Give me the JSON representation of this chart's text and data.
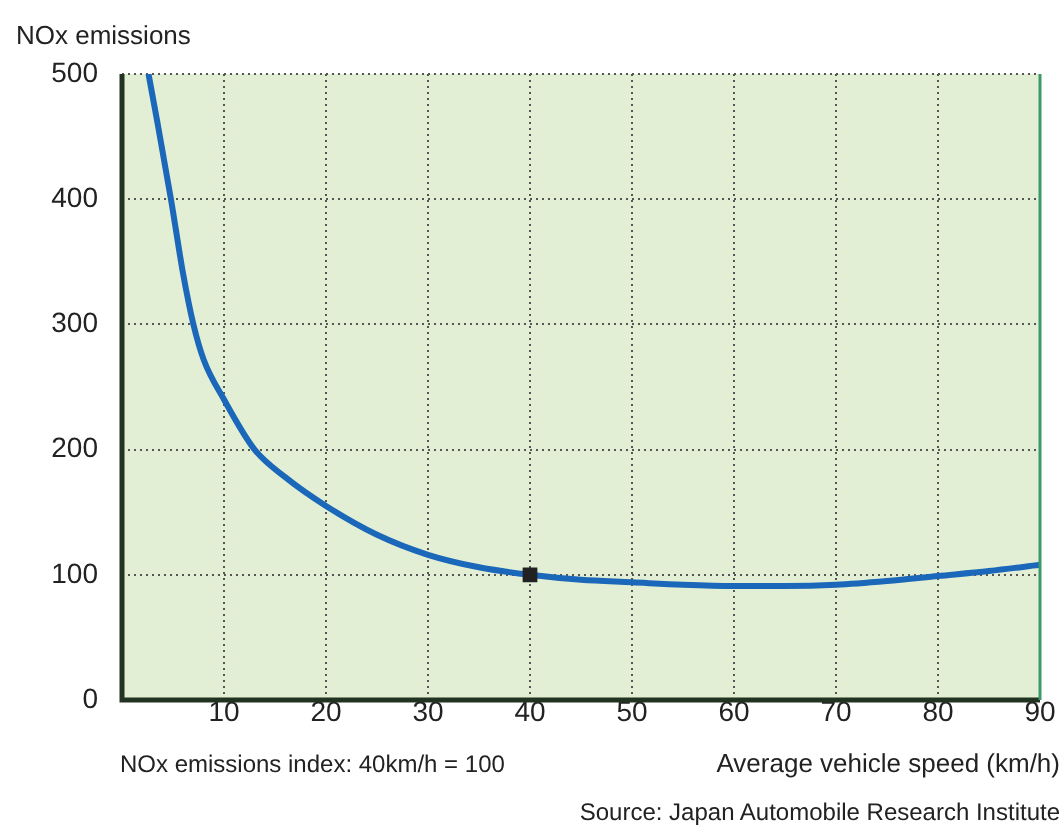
{
  "chart_data": {
    "type": "line",
    "ylabel": "NOx emissions",
    "xlabel": "Average vehicle speed (km/h)",
    "annotations": [
      "NOx emissions index: 40km/h = 100",
      "Source: Japan Automobile Research Institute"
    ],
    "xlim": [
      0,
      90
    ],
    "xticks": [
      10,
      20,
      30,
      40,
      50,
      60,
      70,
      80,
      90
    ],
    "ylim": [
      0,
      500
    ],
    "yticks": [
      0,
      100,
      200,
      300,
      400,
      500
    ],
    "grid": true,
    "legend": false,
    "series": [
      {
        "color": "#1b67b9",
        "x": [
          2.6,
          3.5,
          4.8,
          6,
          7,
          8,
          10,
          13,
          16,
          20,
          25,
          30,
          35,
          40,
          45,
          50,
          55,
          60,
          65,
          70,
          75,
          80,
          85,
          90
        ],
        "values": [
          500,
          460,
          400,
          340,
          300,
          272,
          240,
          200,
          178,
          155,
          132,
          116,
          106,
          100,
          96,
          94,
          92,
          91,
          91,
          92,
          95,
          99,
          103,
          108
        ],
        "marker": "none"
      },
      {
        "type": "scatter",
        "color": "#222222",
        "x": [
          40
        ],
        "values": [
          100
        ],
        "marker": "square"
      }
    ]
  }
}
